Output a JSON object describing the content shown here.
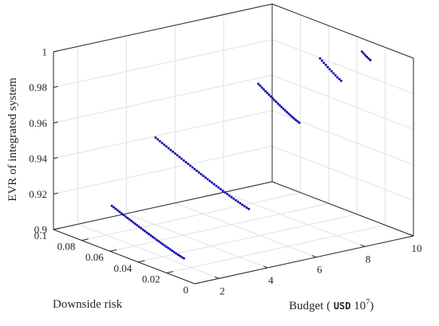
{
  "chart_data": {
    "type": "scatter",
    "projection": "3d",
    "title": "",
    "xlabel": "Budget ( USD 10^7)",
    "xlabel_parts": {
      "prefix": "Budget ( ",
      "unit": "USD",
      "base": " 10",
      "exp": "7",
      "suffix": ")"
    },
    "ylabel": "Downside risk",
    "zlabel": "EVR of integrated system",
    "xlim": [
      1,
      10
    ],
    "ylim": [
      0,
      0.1
    ],
    "zlim": [
      0.9,
      1
    ],
    "xticks": [
      2,
      4,
      6,
      8,
      10
    ],
    "xtick_labels": [
      "2",
      "4",
      "6",
      "8",
      "10"
    ],
    "yticks": [
      0,
      0.02,
      0.04,
      0.06,
      0.08,
      0.1
    ],
    "ytick_labels": [
      "0",
      "0.02",
      "0.04",
      "0.06",
      "0.08",
      "0.1"
    ],
    "zticks": [
      0.9,
      0.92,
      0.94,
      0.96,
      0.98,
      1
    ],
    "ztick_labels": [
      "0.9",
      "0.92",
      "0.94",
      "0.96",
      "0.98",
      "1"
    ],
    "grid": true,
    "marker_color": "#0a0ab4",
    "series": [
      {
        "start": [
          1.6,
          0.069,
          0.921
        ],
        "end": [
          1.6,
          0.018,
          0.907
        ],
        "points": 38
      },
      {
        "start": [
          3.4,
          0.069,
          0.954
        ],
        "end": [
          3.4,
          0.003,
          0.934
        ],
        "points": 44
      },
      {
        "start": [
          6.0,
          0.041,
          0.985
        ],
        "end": [
          6.0,
          0.012,
          0.972
        ],
        "points": 24
      },
      {
        "start": [
          7.9,
          0.03,
          0.997
        ],
        "end": [
          7.9,
          0.015,
          0.989
        ],
        "points": 12
      },
      {
        "start": [
          9.1,
          0.021,
          1.0
        ],
        "end": [
          9.1,
          0.015,
          0.997
        ],
        "points": 6
      }
    ]
  }
}
